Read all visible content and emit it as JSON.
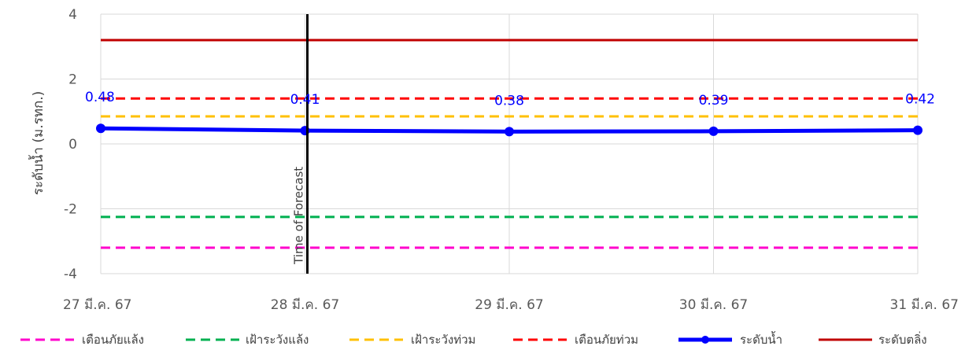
{
  "chart_data": {
    "type": "line",
    "title": "",
    "xlabel": "",
    "ylabel": "ระดับน้ำ (ม.รทก.)",
    "ylim": [
      -4,
      4
    ],
    "yticks": [
      4,
      2,
      0,
      -2,
      -4
    ],
    "ytick_labels": [
      "4",
      "2",
      "0",
      "-2",
      "-4"
    ],
    "categories": [
      "27 มี.ค. 67",
      "28 มี.ค. 67",
      "29 มี.ค. 67",
      "30 มี.ค. 67",
      "31 มี.ค. 67"
    ],
    "grid": true,
    "legend_position": "bottom",
    "forecast_line": {
      "label": "Time of Forecast",
      "x": "28 มี.ค. 67",
      "color": "#000000"
    },
    "series": [
      {
        "name": "เตือนภัยแล้ง",
        "values": [
          -3.2,
          -3.2,
          -3.2,
          -3.2,
          -3.2
        ],
        "color": "#ff00cc",
        "style": "dashed"
      },
      {
        "name": "เฝ้าระวังแล้ง",
        "values": [
          -2.25,
          -2.25,
          -2.25,
          -2.25,
          -2.25
        ],
        "color": "#00b050",
        "style": "dashed"
      },
      {
        "name": "เฝ้าระวังท่วม",
        "values": [
          0.85,
          0.85,
          0.85,
          0.85,
          0.85
        ],
        "color": "#ffc000",
        "style": "dashed"
      },
      {
        "name": "เตือนภัยท่วม",
        "values": [
          1.4,
          1.4,
          1.4,
          1.4,
          1.4
        ],
        "color": "#ff0000",
        "style": "dashed"
      },
      {
        "name": "ระดับน้ำ",
        "values": [
          0.48,
          0.41,
          0.38,
          0.39,
          0.42
        ],
        "labels": [
          "0.48",
          "0.41",
          "0.38",
          "0.39",
          "0.42"
        ],
        "color": "#0000ff",
        "style": "solid-marker"
      },
      {
        "name": "ระดับตลิ่ง",
        "values": [
          3.2,
          3.2,
          3.2,
          3.2,
          3.2
        ],
        "color": "#c00000",
        "style": "solid"
      }
    ]
  }
}
